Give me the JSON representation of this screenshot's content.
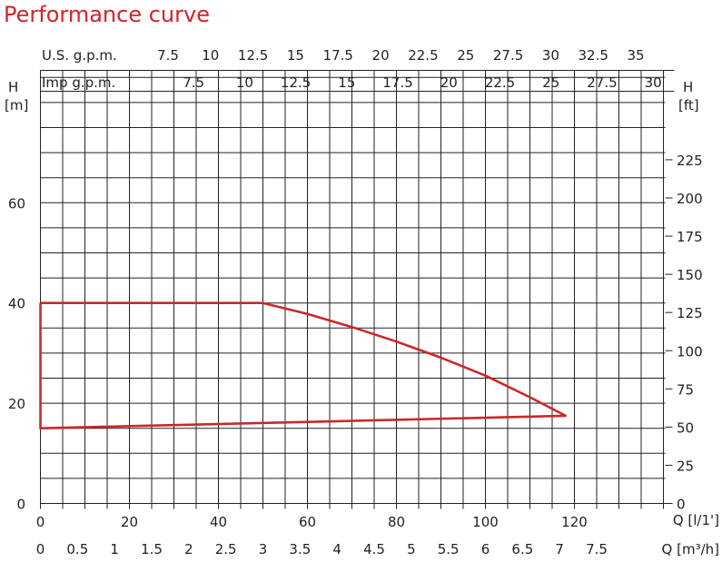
{
  "title": "Performance curve",
  "colors": {
    "title": "#d2232a",
    "curve": "#c9282d",
    "grid": "#222222"
  },
  "chart_data": {
    "type": "line",
    "title": "Performance curve",
    "grid": true,
    "axes": {
      "left": {
        "label_1": "H",
        "label_2": "[m]",
        "range": [
          0,
          78
        ],
        "ticks": [
          0,
          20,
          40,
          60
        ]
      },
      "right": {
        "label_1": "H",
        "label_2": "[ft]",
        "range": [
          0,
          256
        ],
        "ticks": [
          0,
          25,
          50,
          75,
          100,
          125,
          150,
          175,
          200,
          225
        ]
      },
      "bottom_lpm": {
        "label": "Q [l/1']",
        "range": [
          0,
          140
        ],
        "ticks": [
          0,
          20,
          40,
          60,
          80,
          100,
          120
        ]
      },
      "bottom_m3h": {
        "label": "Q [m³/h]",
        "range": [
          0,
          8.4
        ],
        "ticks": [
          "0",
          "0.5",
          "1",
          "1.5",
          "2",
          "2.5",
          "3",
          "3.5",
          "4",
          "4.5",
          "5",
          "5.5",
          "6",
          "6.5",
          "7",
          "7.5"
        ]
      },
      "top_usgpm": {
        "label": "U.S. g.p.m.",
        "ticks": [
          "7.5",
          "10",
          "12.5",
          "15",
          "17.5",
          "20",
          "22.5",
          "25",
          "27.5",
          "30",
          "32.5",
          "35"
        ]
      },
      "top_impgpm": {
        "label": "Imp g.p.m.",
        "ticks": [
          "7.5",
          "10",
          "12.5",
          "15",
          "17.5",
          "20",
          "22.5",
          "25",
          "27.5",
          "30"
        ]
      }
    },
    "series": [
      {
        "x": [
          0,
          50,
          60,
          70,
          80,
          90,
          100,
          110,
          118,
          0,
          0
        ],
        "y": [
          40,
          40,
          37.8,
          35.2,
          32.3,
          29.1,
          25.5,
          21.2,
          17.5,
          15,
          40
        ],
        "x_unit": "l/min",
        "y_unit": "m"
      }
    ]
  }
}
